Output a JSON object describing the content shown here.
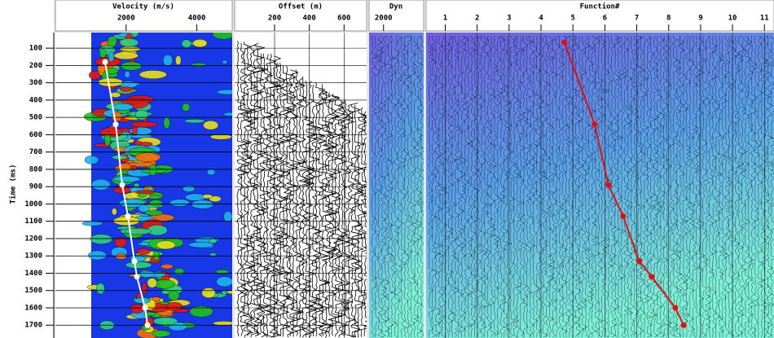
{
  "chart_data": [
    {
      "type": "scatter",
      "title": "Velocity (m/s)",
      "y_label": "Time (ms)",
      "xlim": [
        0,
        5000
      ],
      "xticks": [
        2000,
        4000
      ],
      "ylim": [
        10,
        1760
      ],
      "yticks": [
        100,
        200,
        300,
        400,
        500,
        600,
        700,
        800,
        900,
        1000,
        1100,
        1200,
        1300,
        1400,
        1500,
        1600,
        1700
      ],
      "series": [
        {
          "color": "#ffffff",
          "x": [
            1405,
            1705,
            1890,
            2050,
            2235,
            2305,
            2535,
            2605
          ],
          "values": [
            180,
            540,
            890,
            1070,
            1330,
            1420,
            1600,
            1700
          ]
        }
      ]
    },
    {
      "type": "wiggle",
      "title": "Offset (m)",
      "xlim": [
        -30,
        730
      ],
      "xticks": [
        200,
        400,
        600
      ]
    },
    {
      "type": "wiggle",
      "title": "Dyn",
      "xlim": [
        1100,
        4500
      ],
      "xticks": [
        2000
      ]
    },
    {
      "type": "scatter",
      "title": "Function#",
      "xlim": [
        0.4,
        11.3
      ],
      "xticks": [
        1,
        2,
        3,
        4,
        5,
        6,
        7,
        8,
        9,
        10,
        11
      ],
      "series": [
        {
          "color": "#e01010",
          "x": [
            4.73,
            5.68,
            6.11,
            6.57,
            7.08,
            7.47,
            8.21,
            8.47
          ],
          "values": [
            67,
            540,
            890,
            1070,
            1330,
            1420,
            1600,
            1700
          ]
        }
      ]
    }
  ]
}
